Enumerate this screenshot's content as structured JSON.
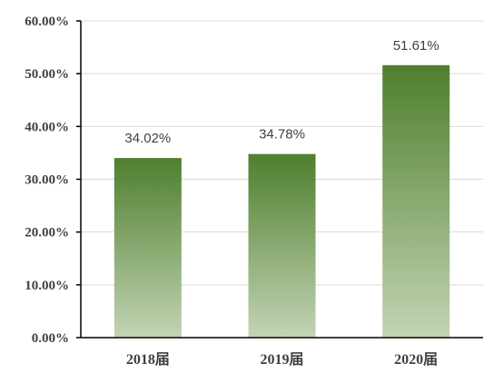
{
  "chart_data": {
    "type": "bar",
    "categories": [
      "2018届",
      "2019届",
      "2020届"
    ],
    "values": [
      34.02,
      34.78,
      51.61
    ],
    "data_labels": [
      "34.02%",
      "34.78%",
      "51.61%"
    ],
    "ylim": [
      0,
      60
    ],
    "yticks": [
      0,
      10,
      20,
      30,
      40,
      50,
      60
    ],
    "ytick_labels": [
      "0.00%",
      "10.00%",
      "20.00%",
      "30.00%",
      "40.00%",
      "50.00%",
      "60.00%"
    ],
    "title": "",
    "xlabel": "",
    "ylabel": "",
    "grid": true,
    "legend": "none",
    "colors": {
      "bar_top": "#4f7f2e",
      "bar_bottom": "#c3d4b5",
      "grid": "#d9d9d9",
      "axis": "#000000",
      "text": "#404040"
    }
  }
}
